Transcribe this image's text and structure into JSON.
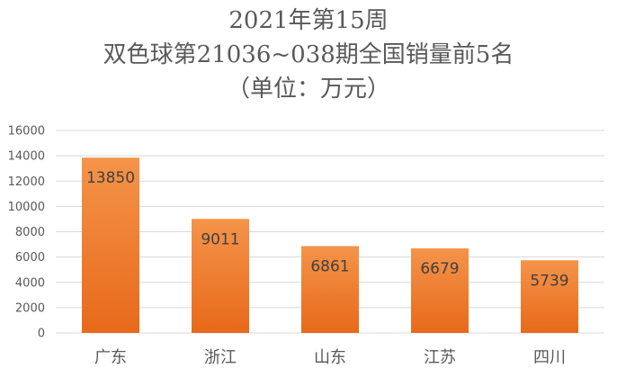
{
  "chart_data": {
    "type": "bar",
    "title_lines": [
      "2021年第15周",
      "双色球第21036~038期全国销量前5名",
      "（单位：万元）"
    ],
    "categories": [
      "广东",
      "浙江",
      "山东",
      "江苏",
      "四川"
    ],
    "values": [
      13850,
      9011,
      6861,
      6679,
      5739
    ],
    "data_labels": [
      "13850",
      "9011",
      "6861",
      "6679",
      "5739"
    ],
    "ylim": [
      0,
      16000
    ],
    "yticks": [
      0,
      2000,
      4000,
      6000,
      8000,
      10000,
      12000,
      14000,
      16000
    ],
    "grid": true,
    "legend": "none",
    "bar_gradient": [
      "#f4944a",
      "#e8691a"
    ],
    "grid_color": "#d9d9d9"
  }
}
